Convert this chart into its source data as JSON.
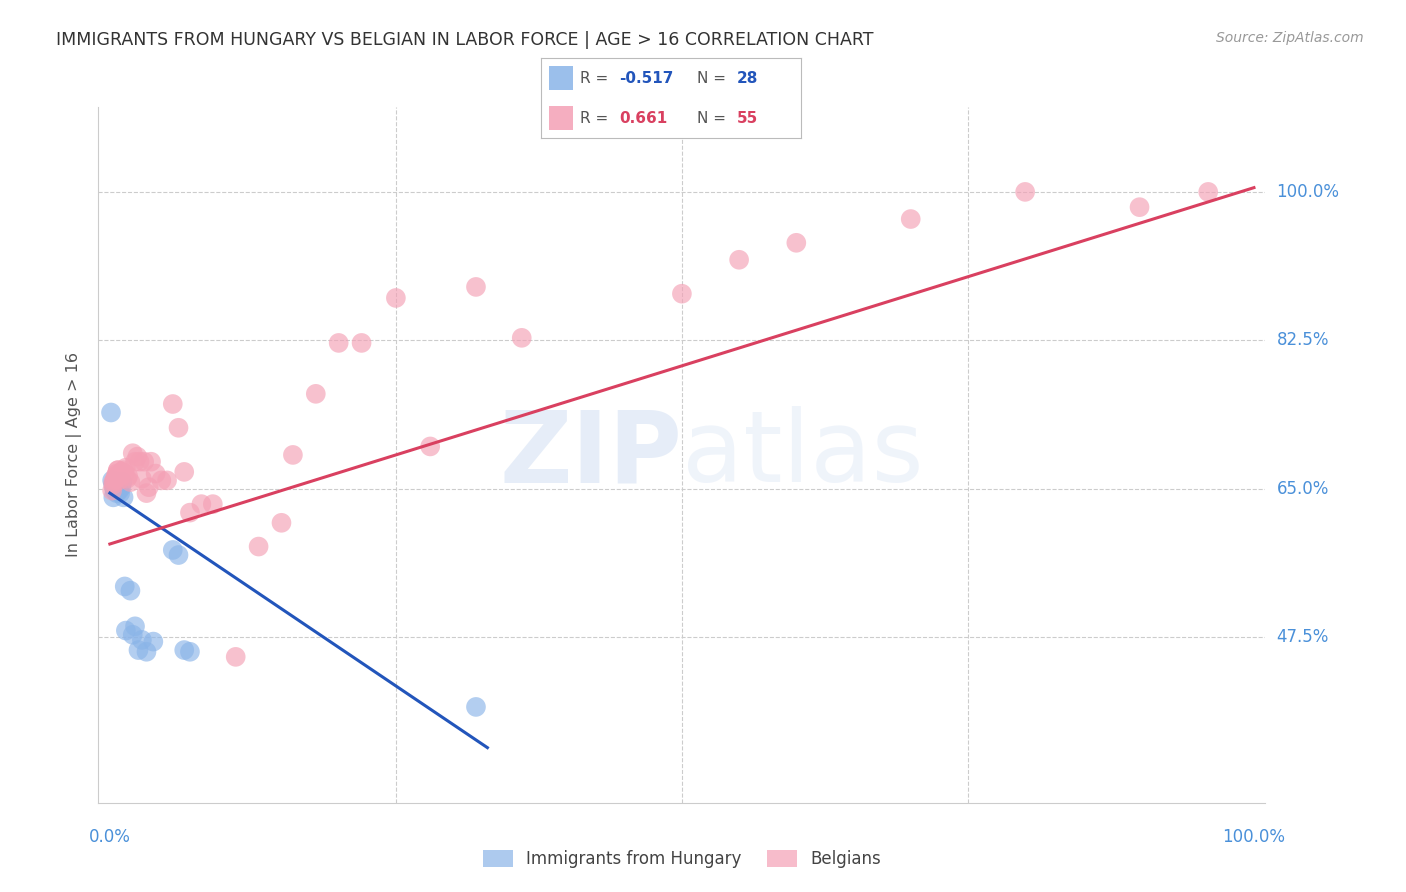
{
  "title": "IMMIGRANTS FROM HUNGARY VS BELGIAN IN LABOR FORCE | AGE > 16 CORRELATION CHART",
  "source": "Source: ZipAtlas.com",
  "ylabel": "In Labor Force | Age > 16",
  "ytick_vals": [
    0.475,
    0.65,
    0.825,
    1.0
  ],
  "ytick_labels": [
    "47.5%",
    "65.0%",
    "82.5%",
    "100.0%"
  ],
  "xlim": [
    -0.01,
    1.01
  ],
  "ylim": [
    0.28,
    1.1
  ],
  "hungary_color": "#8ab4e8",
  "belgian_color": "#f4a0b5",
  "hungary_line_color": "#2255bb",
  "belgian_line_color": "#d94060",
  "hungary_line_x": [
    0.0,
    0.33
  ],
  "hungary_line_y": [
    0.645,
    0.345
  ],
  "belgian_line_x": [
    0.0,
    1.0
  ],
  "belgian_line_y": [
    0.585,
    1.005
  ],
  "hungary_R": "-0.517",
  "hungary_N": "28",
  "belgian_R": "0.661",
  "belgian_N": "55",
  "legend_label_1": "Immigrants from Hungary",
  "legend_label_2": "Belgians",
  "hungary_x": [
    0.002,
    0.003,
    0.004,
    0.005,
    0.006,
    0.007,
    0.008,
    0.009,
    0.01,
    0.011,
    0.012,
    0.013,
    0.014,
    0.018,
    0.02,
    0.022,
    0.025,
    0.028,
    0.032,
    0.038,
    0.055,
    0.06,
    0.065,
    0.07,
    0.001,
    0.003,
    0.004,
    0.32
  ],
  "hungary_y": [
    0.66,
    0.655,
    0.65,
    0.648,
    0.645,
    0.65,
    0.648,
    0.645,
    0.652,
    0.658,
    0.64,
    0.535,
    0.483,
    0.53,
    0.478,
    0.488,
    0.46,
    0.472,
    0.458,
    0.47,
    0.578,
    0.572,
    0.46,
    0.458,
    0.74,
    0.64,
    0.648,
    0.393
  ],
  "belgian_x": [
    0.002,
    0.003,
    0.004,
    0.005,
    0.006,
    0.007,
    0.008,
    0.009,
    0.01,
    0.011,
    0.012,
    0.013,
    0.014,
    0.015,
    0.016,
    0.018,
    0.02,
    0.022,
    0.024,
    0.026,
    0.028,
    0.03,
    0.032,
    0.034,
    0.036,
    0.04,
    0.045,
    0.05,
    0.055,
    0.06,
    0.065,
    0.07,
    0.08,
    0.09,
    0.11,
    0.13,
    0.15,
    0.16,
    0.18,
    0.2,
    0.22,
    0.25,
    0.28,
    0.32,
    0.36,
    0.5,
    0.55,
    0.6,
    0.7,
    0.8,
    0.9,
    0.003,
    0.005,
    0.007,
    0.96
  ],
  "belgian_y": [
    0.648,
    0.655,
    0.66,
    0.662,
    0.668,
    0.672,
    0.66,
    0.665,
    0.67,
    0.67,
    0.672,
    0.668,
    0.675,
    0.662,
    0.665,
    0.658,
    0.692,
    0.682,
    0.688,
    0.682,
    0.662,
    0.682,
    0.645,
    0.652,
    0.682,
    0.668,
    0.66,
    0.66,
    0.75,
    0.722,
    0.67,
    0.622,
    0.632,
    0.632,
    0.452,
    0.582,
    0.61,
    0.69,
    0.762,
    0.822,
    0.822,
    0.875,
    0.7,
    0.888,
    0.828,
    0.88,
    0.92,
    0.94,
    0.968,
    1.0,
    0.982,
    0.658,
    0.665,
    0.672,
    1.0
  ]
}
